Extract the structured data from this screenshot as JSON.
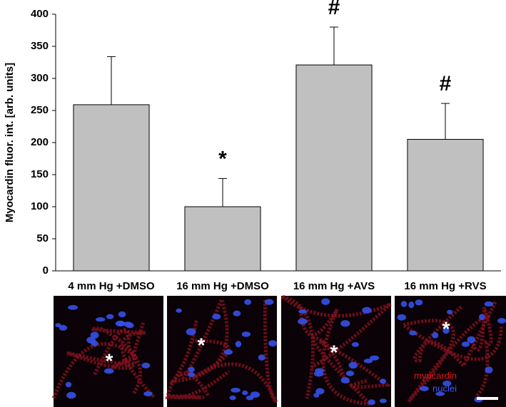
{
  "chart_data": {
    "type": "bar",
    "y_label": "Myocardin fluor. int. [arb. units]",
    "categories": [
      "4 mm Hg +DMSO",
      "16 mm Hg +DMSO",
      "16 mm Hg +AVS",
      "16 mm Hg +RVS"
    ],
    "values": [
      259,
      100,
      321,
      205
    ],
    "errors": [
      75,
      44,
      59,
      56
    ],
    "color": "#c0c0c0",
    "ylim": [
      0,
      400
    ],
    "yticks": [
      0,
      50,
      100,
      150,
      200,
      250,
      300,
      350,
      400
    ],
    "grid": false,
    "annotations": [
      {
        "text": "*",
        "category": "16 mm Hg +DMSO"
      },
      {
        "text": "#",
        "category": "16 mm Hg +AVS"
      },
      {
        "text": "#",
        "category": "16 mm Hg +RVS"
      }
    ],
    "panel_marks": [
      "*",
      "*",
      "*",
      "*"
    ],
    "image_legend": [
      {
        "text": "myocardin",
        "color": "#e0141e"
      },
      {
        "text": "nuclei",
        "color": "#3c5cff"
      }
    ]
  }
}
